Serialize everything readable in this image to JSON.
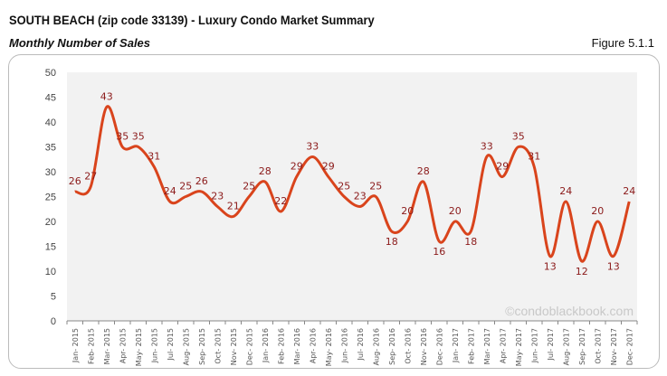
{
  "header": {
    "title": "SOUTH BEACH (zip code 33139) - Luxury Condo Market Summary",
    "subtitle": "Monthly Number of Sales",
    "figure": "Figure 5.1.1"
  },
  "watermark": "©condoblackbook.com",
  "colors": {
    "line": "#d9441c",
    "label": "#8b1a1a",
    "plot_bg": "#f2f2f2"
  },
  "chart_data": {
    "type": "line",
    "title": "Monthly Number of Sales",
    "categories": [
      "Jan- 2015",
      "Feb- 2015",
      "Mar- 2015",
      "Apr- 2015",
      "May- 2015",
      "Jun- 2015",
      "Jul- 2015",
      "Aug- 2015",
      "Sep- 2015",
      "Oct- 2015",
      "Nov- 2015",
      "Dec- 2015",
      "Jan- 2016",
      "Feb- 2016",
      "Mar- 2016",
      "Apr- 2016",
      "May- 2016",
      "Jun- 2016",
      "Jul- 2016",
      "Aug- 2016",
      "Sep- 2016",
      "Oct- 2016",
      "Nov- 2016",
      "Dec- 2016",
      "Jan- 2017",
      "Feb- 2017",
      "Mar- 2017",
      "Apr- 2017",
      "May- 2017",
      "Jun- 2017",
      "Jul- 2017",
      "Aug- 2017",
      "Sep- 2017",
      "Oct- 2017",
      "Nov- 2017",
      "Dec- 2017"
    ],
    "values": [
      26,
      27,
      43,
      35,
      35,
      31,
      24,
      25,
      26,
      23,
      21,
      25,
      28,
      22,
      29,
      33,
      29,
      25,
      23,
      25,
      18,
      20,
      28,
      16,
      20,
      18,
      33,
      29,
      35,
      31,
      13,
      24,
      12,
      20,
      13,
      24
    ],
    "ylim": [
      0,
      50
    ],
    "yticks": [
      0,
      5,
      10,
      15,
      20,
      25,
      30,
      35,
      40,
      45,
      50
    ],
    "grid": false,
    "smooth": true
  }
}
